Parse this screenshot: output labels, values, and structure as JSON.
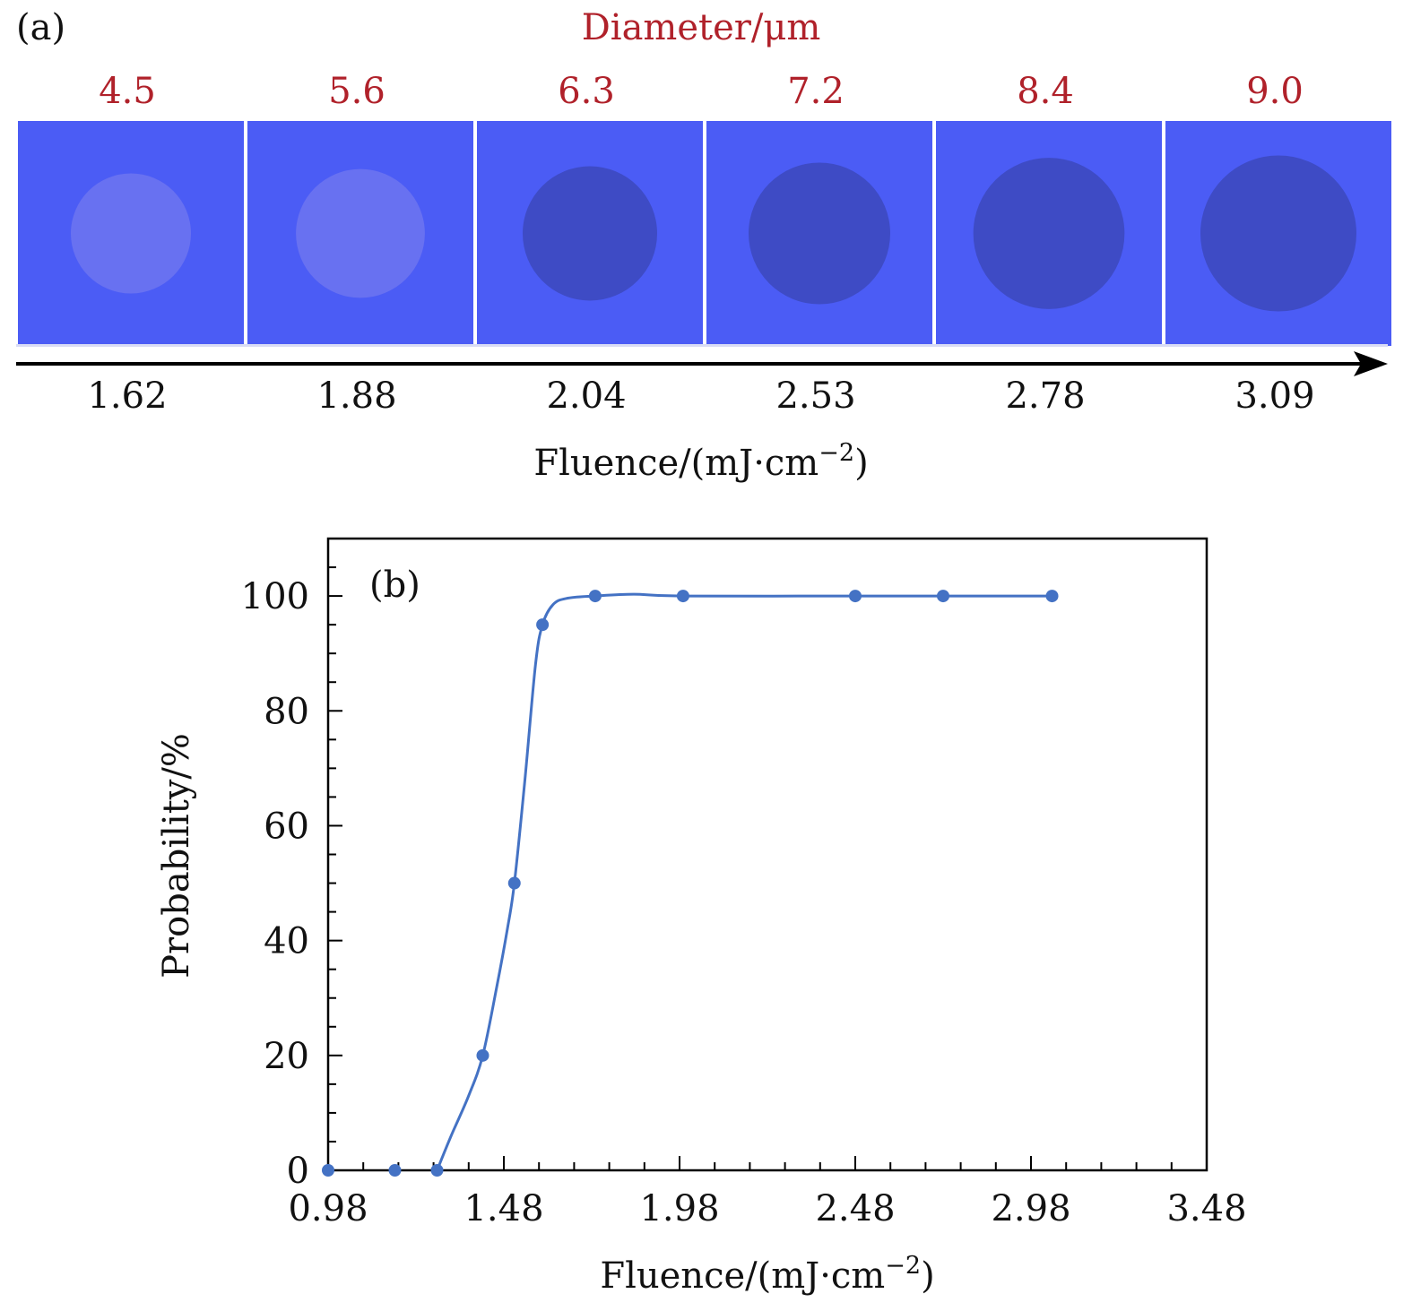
{
  "panel_a": {
    "label": "(a)",
    "diameter_title": "Diameter/μm",
    "diameters": [
      "4.5",
      "5.6",
      "6.3",
      "7.2",
      "8.4",
      "9.0"
    ],
    "fluences": [
      "1.62",
      "1.88",
      "2.04",
      "2.53",
      "2.78",
      "3.09"
    ],
    "fluence_label_prefix": "Fluence/(mJ·cm",
    "fluence_label_sup": "−2",
    "fluence_label_suffix": ")",
    "spot_darkness": [
      0.0,
      0.0,
      1.0,
      1.0,
      1.0,
      1.0
    ],
    "colors": {
      "background": "#4b5cf5",
      "dark_spot": "#3d4ac2",
      "light_spot": "#6d74f0",
      "title_red": "#b0212a"
    }
  },
  "chart_data": {
    "type": "line",
    "panel_label": "(b)",
    "title": "",
    "xlabel_prefix": "Fluence/(mJ·cm",
    "xlabel_sup": "−2",
    "xlabel_suffix": ")",
    "ylabel": "Probability/%",
    "xlim": [
      0.98,
      3.48
    ],
    "ylim": [
      0,
      110
    ],
    "xticks": [
      0.98,
      1.48,
      1.98,
      2.48,
      2.98,
      3.48
    ],
    "xtick_labels": [
      "0.98",
      "1.48",
      "1.98",
      "2.48",
      "2.98",
      "3.48"
    ],
    "yticks": [
      0,
      20,
      40,
      60,
      80,
      100
    ],
    "ytick_labels": [
      "0",
      "20",
      "40",
      "60",
      "80",
      "100"
    ],
    "grid": false,
    "series": [
      {
        "name": "Probability",
        "color": "#4472c4",
        "x": [
          0.98,
          1.17,
          1.29,
          1.42,
          1.51,
          1.59,
          1.74,
          1.99,
          2.48,
          2.73,
          3.04
        ],
        "y": [
          0,
          0,
          0,
          20,
          50,
          95,
          100,
          100,
          100,
          100,
          100
        ]
      }
    ],
    "fit_curve": {
      "x": [
        1.29,
        1.33,
        1.38,
        1.42,
        1.46,
        1.49,
        1.51,
        1.54,
        1.57,
        1.59,
        1.62,
        1.66,
        1.74,
        1.85,
        1.99,
        2.48,
        2.73,
        3.04
      ],
      "y": [
        0,
        6,
        13,
        20,
        32,
        42,
        50,
        68,
        88,
        95,
        98.5,
        99.6,
        100,
        100.3,
        100,
        100,
        100,
        100
      ]
    }
  }
}
